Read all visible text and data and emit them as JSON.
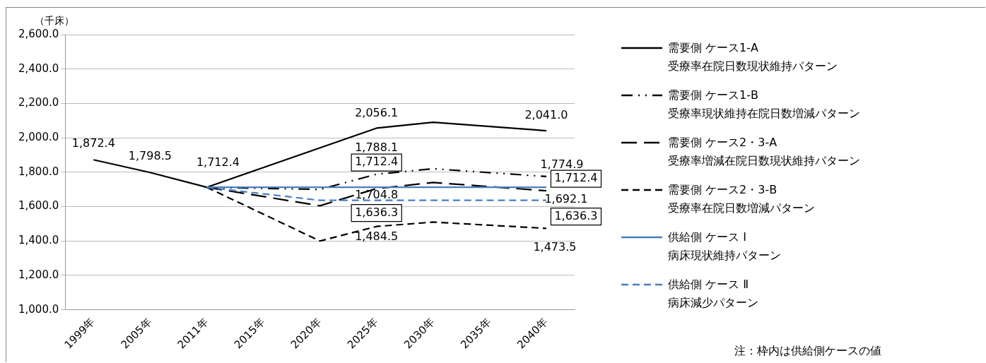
{
  "chart_data": {
    "type": "line",
    "ylabel": "（千床）",
    "categories": [
      "1999年",
      "2005年",
      "2011年",
      "2015年",
      "2020年",
      "2025年",
      "2030年",
      "2035年",
      "2040年"
    ],
    "series": [
      {
        "name": "需要側 ケース1-A\n受療率在院日数現状維持パターン",
        "color": "#000000",
        "line_style": "solid",
        "values": [
          1872.4,
          1798.5,
          1712.4,
          null,
          null,
          2056.1,
          2090,
          null,
          2041.0
        ],
        "value_labels": [
          "1,872.4",
          "1,798.5",
          "1,712.4",
          null,
          null,
          "2,056.1",
          null,
          null,
          "2,041.0"
        ]
      },
      {
        "name": "需要側 ケース1-B\n受療率現状維持在院日数増減パターン",
        "color": "#000000",
        "line_style": "dashdot",
        "values": [
          null,
          null,
          1712.4,
          null,
          1700,
          1788.1,
          1820,
          null,
          1774.9
        ],
        "value_labels": [
          null,
          null,
          null,
          null,
          null,
          "1,788.1",
          null,
          null,
          "1,774.9"
        ]
      },
      {
        "name": "需要側 ケース2・3-A\n受療率増減在院日数現状維持パターン",
        "color": "#000000",
        "line_style": "longdash",
        "values": [
          null,
          null,
          1712.4,
          null,
          1605,
          1704.8,
          1740,
          null,
          1692.1
        ],
        "value_labels": [
          null,
          null,
          null,
          null,
          null,
          "1,704.8",
          null,
          null,
          "1,692.1"
        ]
      },
      {
        "name": "需要側 ケース2・3-B\n受療率在院日数増減パターン",
        "color": "#000000",
        "line_style": "dashed",
        "values": [
          null,
          null,
          1712.4,
          null,
          1400,
          1484.5,
          1510,
          null,
          1473.5
        ],
        "value_labels": [
          null,
          null,
          null,
          null,
          null,
          "1,484.5",
          null,
          null,
          "1,473.5"
        ]
      },
      {
        "name": "供給側 ケース Ⅰ\n病床現状維持パターン",
        "color": "#4a7ebb",
        "line_style": "solid",
        "values": [
          null,
          null,
          1712.4,
          null,
          1712.4,
          1712.4,
          1712.4,
          null,
          1712.4
        ],
        "value_labels": [
          null,
          null,
          null,
          null,
          null,
          "1,712.4",
          null,
          null,
          "1,712.4"
        ]
      },
      {
        "name": "供給側 ケース Ⅱ\n病床減少パターン",
        "color": "#4a7ebb",
        "line_style": "dashed",
        "values": [
          null,
          null,
          1712.4,
          null,
          1636.3,
          1636.3,
          1636.3,
          null,
          1636.3
        ],
        "value_labels": [
          null,
          null,
          null,
          null,
          null,
          "1,636.3",
          null,
          null,
          "1,636.3"
        ]
      }
    ],
    "ylim": [
      1000,
      2600
    ],
    "yticks": [
      {
        "value": 1000,
        "label": "1,000.0"
      },
      {
        "value": 1200,
        "label": "1,200.0"
      },
      {
        "value": 1400,
        "label": "1,400.0"
      },
      {
        "value": 1600,
        "label": "1,600.0"
      },
      {
        "value": 1800,
        "label": "1,800.0"
      },
      {
        "value": 2000,
        "label": "2,000.0"
      },
      {
        "value": 2200,
        "label": "2,200.0"
      },
      {
        "value": 2400,
        "label": "2,400.0"
      },
      {
        "value": 2600,
        "label": "2,600.0"
      }
    ],
    "grid": "y",
    "legend": "right",
    "marker": "none",
    "annotations": [
      "注：枠内は供給側ケースの値"
    ]
  }
}
